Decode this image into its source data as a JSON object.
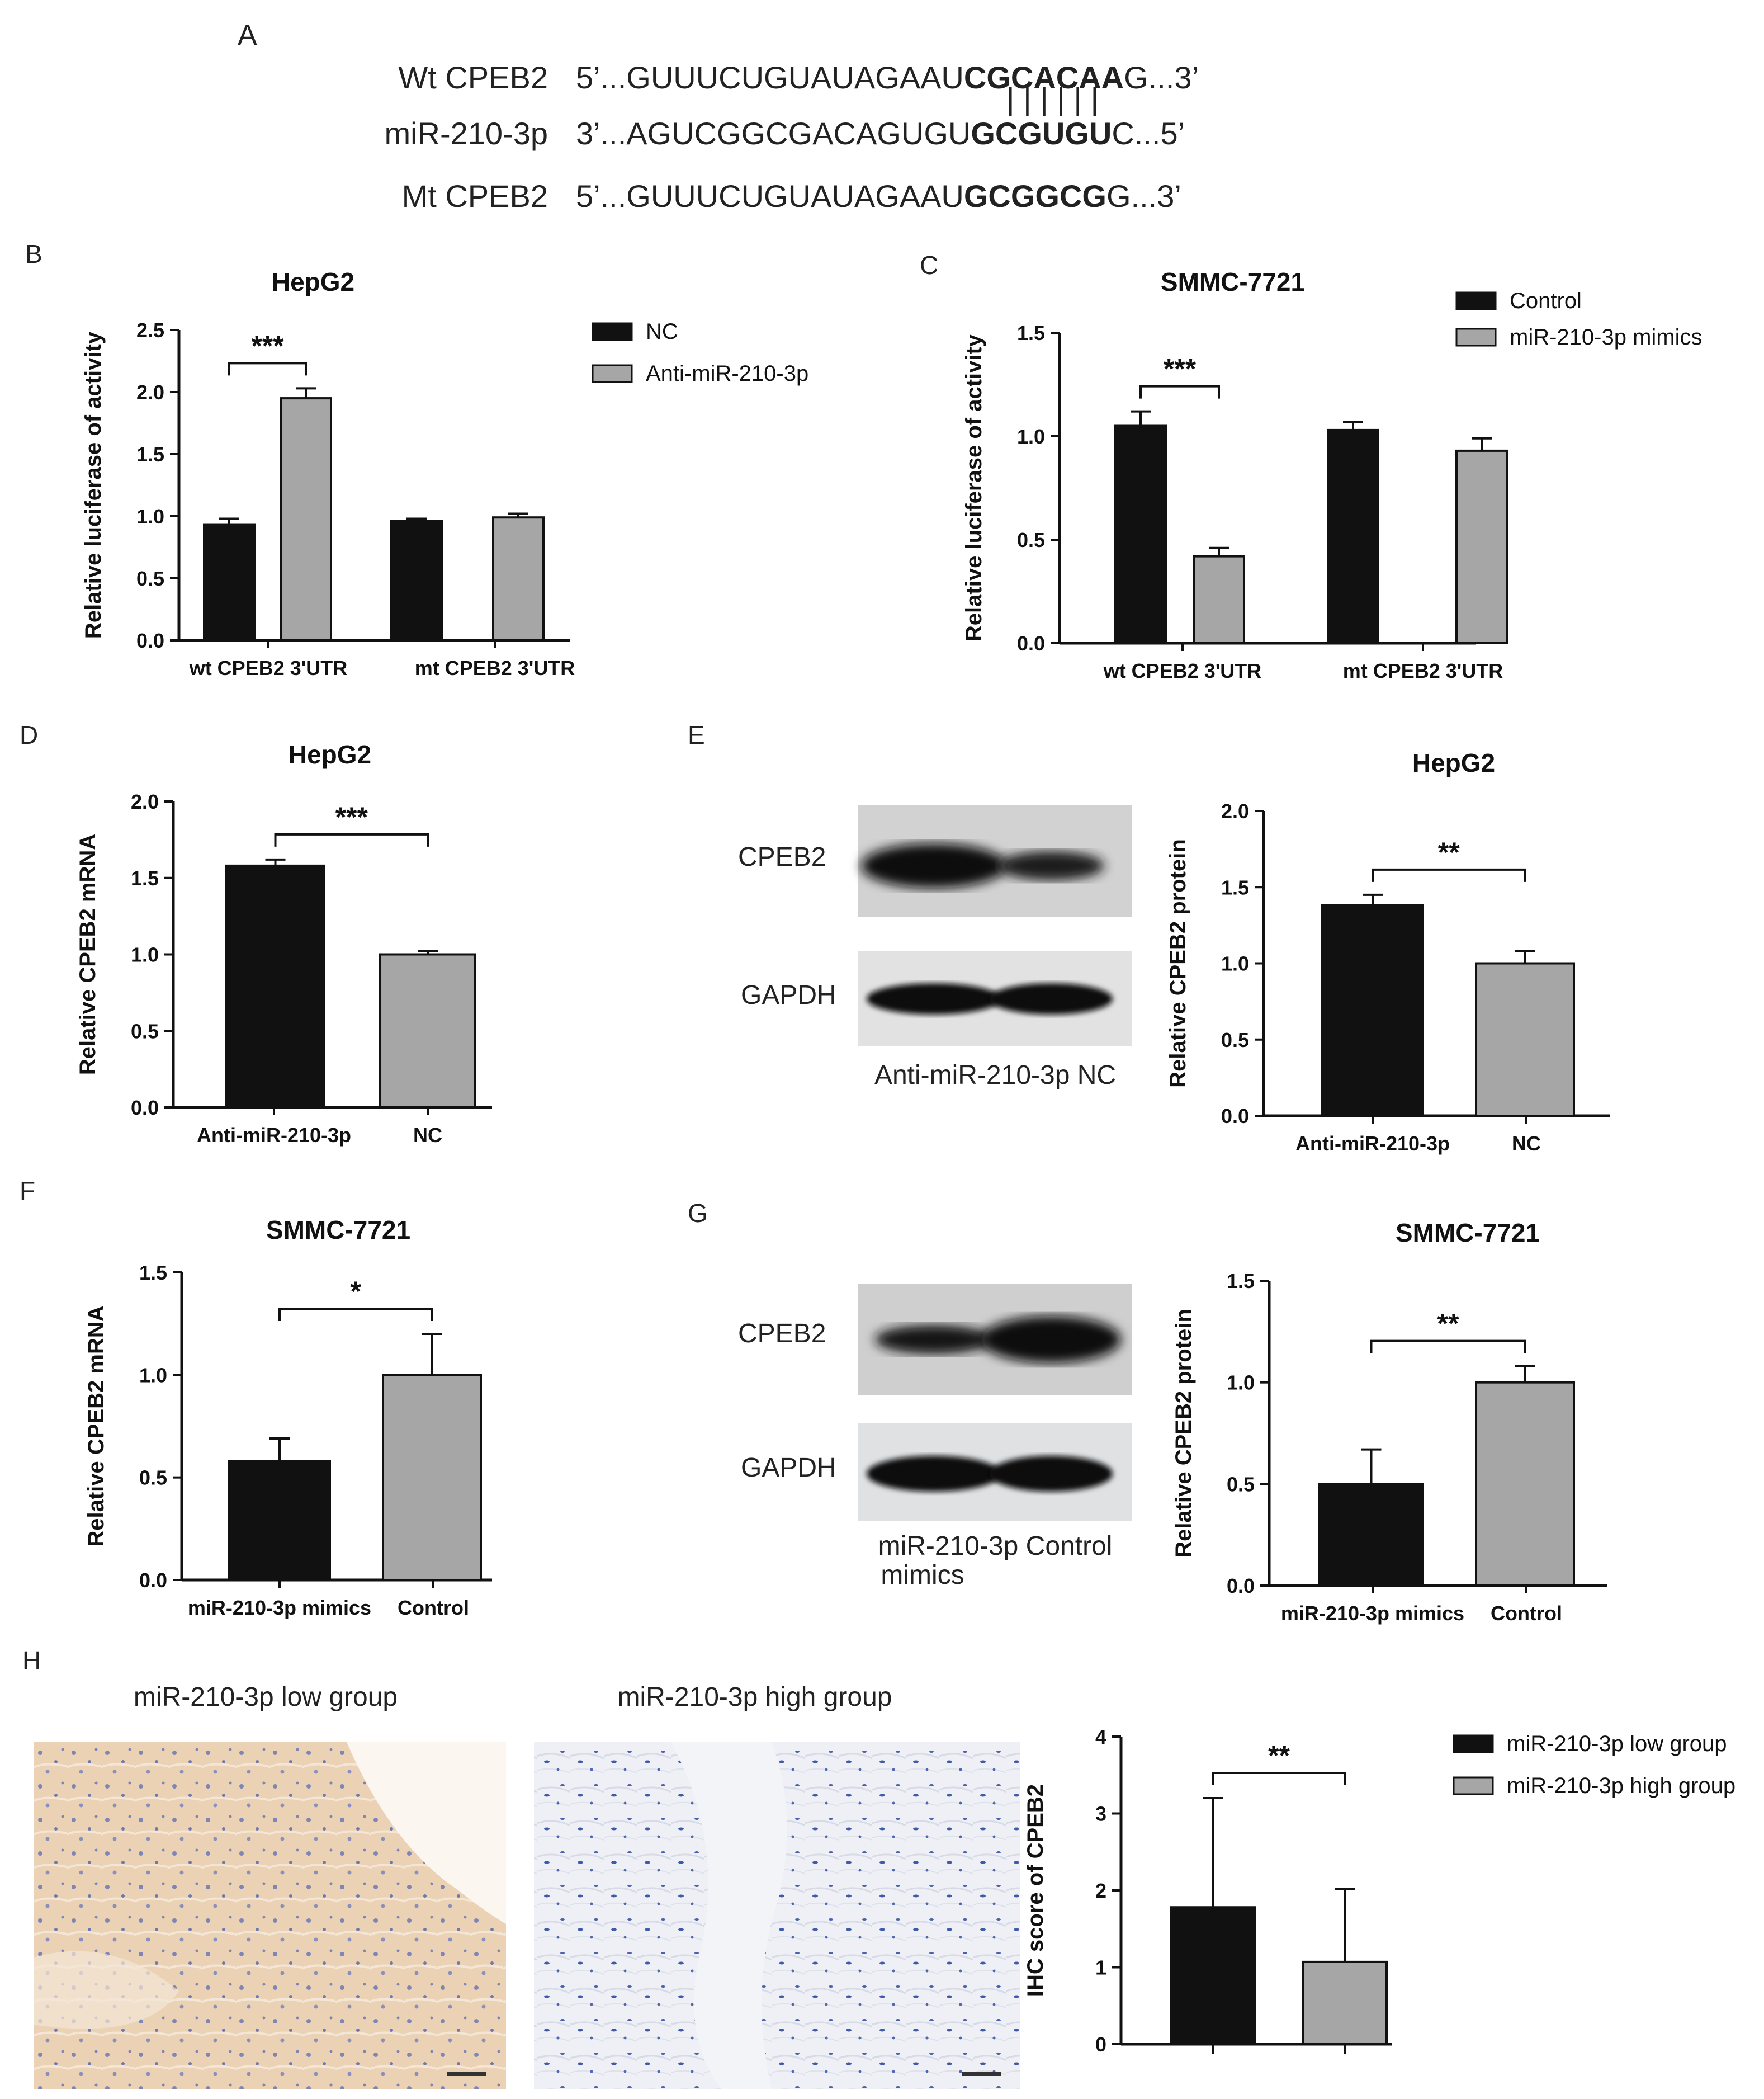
{
  "panels": {
    "A": {
      "letter": "A",
      "rows": [
        {
          "label": "Wt CPEB2",
          "prefix": "5’...GUUUCUGUAUAGAAU",
          "bold": "CGCACAA",
          "suffix": "G...3’"
        },
        {
          "label": "miR-210-3p",
          "prefix": "3’...AGUCGGCGACAGUGU",
          "bold": "GCGUGU",
          "suffix": "C...5’"
        },
        {
          "label": "Mt CPEB2",
          "prefix": "5’...GUUUCUGUAUAGAAU",
          "bold": "GCGGCG",
          "suffix": "G...3’"
        }
      ],
      "pairing_marks": "| | | | | |"
    },
    "E": {
      "letter": "E",
      "blot_labels": [
        "CPEB2",
        "GAPDH"
      ],
      "lane_caption": "Anti-miR-210-3p NC"
    },
    "G": {
      "letter": "G",
      "blot_labels": [
        "CPEB2",
        "GAPDH"
      ],
      "lane_caption_lines": [
        "miR-210-3p Control",
        "mimics"
      ]
    },
    "H": {
      "letter": "H",
      "image_titles": [
        "miR-210-3p low group",
        "miR-210-3p high group"
      ],
      "scale_bar": "100 μm"
    }
  },
  "colors": {
    "black_bar": "#111111",
    "gray_bar": "#a6a6a6",
    "tissue_low": "#e8c8a6",
    "tissue_high": "#dfe3ec"
  },
  "chart_data": [
    {
      "id": "B",
      "letter": "B",
      "type": "bar",
      "title": "HepG2",
      "xlabel": "",
      "ylabel": "Relative luciferase of activity",
      "ylim": [
        0,
        2.5
      ],
      "yticks": [
        "0.0",
        "0.5",
        "1.0",
        "1.5",
        "2.0",
        "2.5"
      ],
      "categories": [
        "wt CPEB2 3'UTR",
        "mt CPEB2 3'UTR"
      ],
      "series": [
        {
          "name": "NC",
          "color": "#111111",
          "values": [
            0.93,
            0.96
          ],
          "errors": [
            0.05,
            0.02
          ]
        },
        {
          "name": "Anti-miR-210-3p",
          "color": "#a6a6a6",
          "values": [
            1.95,
            0.99
          ],
          "errors": [
            0.08,
            0.03
          ]
        }
      ],
      "significance": [
        {
          "label": "***",
          "category": 0
        }
      ],
      "legend": "right"
    },
    {
      "id": "C",
      "letter": "C",
      "type": "bar",
      "title": "SMMC-7721",
      "xlabel": "",
      "ylabel": "Relative luciferase of activity",
      "ylim": [
        0,
        1.5
      ],
      "yticks": [
        "0.0",
        "0.5",
        "1.0",
        "1.5"
      ],
      "categories": [
        "wt CPEB2 3'UTR",
        "mt CPEB2 3'UTR"
      ],
      "series": [
        {
          "name": "Control",
          "color": "#111111",
          "values": [
            1.05,
            1.03
          ],
          "errors": [
            0.07,
            0.04
          ]
        },
        {
          "name": "miR-210-3p mimics",
          "color": "#a6a6a6",
          "values": [
            0.42,
            0.93
          ],
          "errors": [
            0.04,
            0.06
          ]
        }
      ],
      "significance": [
        {
          "label": "***",
          "category": 0
        }
      ],
      "legend": "top-right"
    },
    {
      "id": "D",
      "letter": "D",
      "type": "bar",
      "title": "HepG2",
      "xlabel": "",
      "ylabel": "Relative CPEB2 mRNA",
      "ylim": [
        0,
        2.0
      ],
      "yticks": [
        "0.0",
        "0.5",
        "1.0",
        "1.5",
        "2.0"
      ],
      "categories": [
        "Anti-miR-210-3p",
        "NC"
      ],
      "values": [
        1.58,
        1.0
      ],
      "errors": [
        0.04,
        0.02
      ],
      "colors": [
        "#111111",
        "#a6a6a6"
      ],
      "significance": [
        {
          "label": "***"
        }
      ]
    },
    {
      "id": "E",
      "type": "bar",
      "title": "HepG2",
      "xlabel": "",
      "ylabel": "Relative CPEB2 protein",
      "ylim": [
        0,
        2.0
      ],
      "yticks": [
        "0.0",
        "0.5",
        "1.0",
        "1.5",
        "2.0"
      ],
      "categories": [
        "Anti-miR-210-3p",
        "NC"
      ],
      "values": [
        1.38,
        1.0
      ],
      "errors": [
        0.07,
        0.08
      ],
      "colors": [
        "#111111",
        "#a6a6a6"
      ],
      "significance": [
        {
          "label": "**"
        }
      ]
    },
    {
      "id": "F",
      "letter": "F",
      "type": "bar",
      "title": "SMMC-7721",
      "xlabel": "",
      "ylabel": "Relative CPEB2 mRNA",
      "ylim": [
        0,
        1.5
      ],
      "yticks": [
        "0.0",
        "0.5",
        "1.0",
        "1.5"
      ],
      "categories": [
        "miR-210-3p mimics",
        "Control"
      ],
      "values": [
        0.58,
        1.0
      ],
      "errors": [
        0.11,
        0.2
      ],
      "colors": [
        "#111111",
        "#a6a6a6"
      ],
      "significance": [
        {
          "label": "*"
        }
      ]
    },
    {
      "id": "G",
      "type": "bar",
      "title": "SMMC-7721",
      "xlabel": "",
      "ylabel": "Relative CPEB2 protein",
      "ylim": [
        0,
        1.5
      ],
      "yticks": [
        "0.0",
        "0.5",
        "1.0",
        "1.5"
      ],
      "categories": [
        "miR-210-3p mimics",
        "Control"
      ],
      "values": [
        0.5,
        1.0
      ],
      "errors": [
        0.17,
        0.08
      ],
      "colors": [
        "#111111",
        "#a6a6a6"
      ],
      "significance": [
        {
          "label": "**"
        }
      ]
    },
    {
      "id": "H",
      "type": "bar",
      "title": "",
      "xlabel": "",
      "ylabel": "IHC score of CPEB2",
      "ylim": [
        0,
        4
      ],
      "yticks": [
        "0",
        "1",
        "2",
        "3",
        "4"
      ],
      "categories": [
        "",
        ""
      ],
      "values": [
        1.78,
        1.07
      ],
      "errors": [
        1.42,
        0.95
      ],
      "colors": [
        "#111111",
        "#a6a6a6"
      ],
      "significance": [
        {
          "label": "**"
        }
      ],
      "legend_entries": [
        {
          "name": "miR-210-3p low group",
          "color": "#111111"
        },
        {
          "name": "miR-210-3p high group",
          "color": "#a6a6a6"
        }
      ],
      "legend": "top-right"
    }
  ]
}
